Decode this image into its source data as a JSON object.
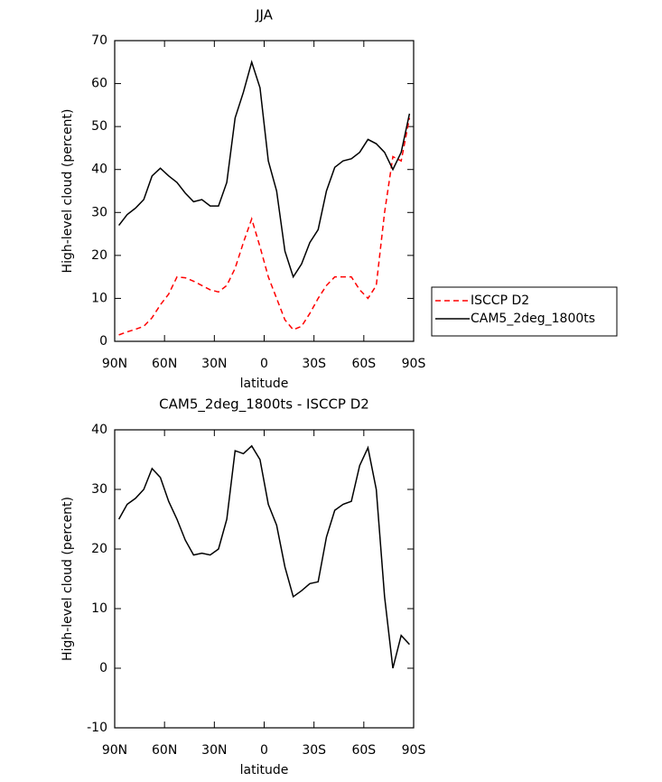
{
  "chart_data": [
    {
      "type": "line",
      "title": "JJA",
      "xlabel": "latitude",
      "ylabel": "High-level cloud (percent)",
      "x": [
        87.5,
        82.5,
        77.5,
        72.5,
        67.5,
        62.5,
        57.5,
        52.5,
        47.5,
        42.5,
        37.5,
        32.5,
        27.5,
        22.5,
        17.5,
        12.5,
        7.5,
        2.5,
        -2.5,
        -7.5,
        -12.5,
        -17.5,
        -22.5,
        -27.5,
        -32.5,
        -37.5,
        -42.5,
        -47.5,
        -52.5,
        -57.5,
        -62.5,
        -67.5,
        -72.5,
        -77.5,
        -82.5,
        -87.5
      ],
      "series": [
        {
          "name": "ISCCP D2",
          "color": "#ff0000",
          "line_style": "dashed",
          "values": [
            1.5,
            2.2,
            2.8,
            3.5,
            5.5,
            8.5,
            11,
            15,
            14.8,
            14,
            13,
            12,
            11.5,
            13,
            17,
            23,
            28.5,
            22,
            15,
            10,
            5,
            2.7,
            3.5,
            6.5,
            10,
            13,
            15,
            15,
            15,
            12,
            10,
            13,
            30,
            43,
            42,
            52
          ]
        },
        {
          "name": "CAM5_2deg_1800ts",
          "color": "#000000",
          "line_style": "solid",
          "values": [
            27,
            29.5,
            31,
            33,
            38.5,
            40.3,
            38.5,
            37,
            34.5,
            32.5,
            33,
            31.5,
            31.5,
            37,
            52,
            58,
            65,
            59,
            42,
            35,
            21,
            15,
            18,
            23,
            26,
            35,
            40.5,
            42,
            42.5,
            44,
            47,
            46,
            44,
            40,
            44,
            53
          ]
        }
      ],
      "xlim": [
        90,
        -90
      ],
      "xticks": [
        {
          "value": 90,
          "label": "90N"
        },
        {
          "value": 60,
          "label": "60N"
        },
        {
          "value": 30,
          "label": "30N"
        },
        0,
        {
          "value": -30,
          "label": "30S"
        },
        {
          "value": -60,
          "label": "60S"
        },
        {
          "value": -90,
          "label": "90S"
        }
      ],
      "ylim": [
        0,
        70
      ],
      "yticks": [
        0,
        10,
        20,
        30,
        40,
        50,
        60,
        70
      ],
      "legend": "right"
    },
    {
      "type": "line",
      "title": "CAM5_2deg_1800ts - ISCCP D2",
      "xlabel": "latitude",
      "ylabel": "High-level cloud (percent)",
      "x": [
        87.5,
        82.5,
        77.5,
        72.5,
        67.5,
        62.5,
        57.5,
        52.5,
        47.5,
        42.5,
        37.5,
        32.5,
        27.5,
        22.5,
        17.5,
        12.5,
        7.5,
        2.5,
        -2.5,
        -7.5,
        -12.5,
        -17.5,
        -22.5,
        -27.5,
        -32.5,
        -37.5,
        -42.5,
        -47.5,
        -52.5,
        -57.5,
        -62.5,
        -67.5,
        -72.5,
        -77.5,
        -82.5,
        -87.5
      ],
      "series": [
        {
          "color": "#000000",
          "line_style": "solid",
          "values": [
            25,
            27.5,
            28.5,
            30,
            33.5,
            32,
            28,
            25,
            21.5,
            19,
            19.3,
            19,
            20,
            25,
            36.5,
            36,
            37.3,
            35,
            27.5,
            24,
            17,
            12,
            13,
            14.2,
            14.5,
            22,
            26.5,
            27.5,
            28,
            34,
            37,
            30,
            12,
            0,
            5.5,
            4
          ]
        }
      ],
      "xlim": [
        90,
        -90
      ],
      "xticks": [
        {
          "value": 90,
          "label": "90N"
        },
        {
          "value": 60,
          "label": "60N"
        },
        {
          "value": 30,
          "label": "30N"
        },
        0,
        {
          "value": -30,
          "label": "30S"
        },
        {
          "value": -60,
          "label": "60S"
        },
        {
          "value": -90,
          "label": "90S"
        }
      ],
      "ylim": [
        -10,
        40
      ],
      "yticks": [
        -10,
        0,
        10,
        20,
        30,
        40
      ]
    }
  ]
}
